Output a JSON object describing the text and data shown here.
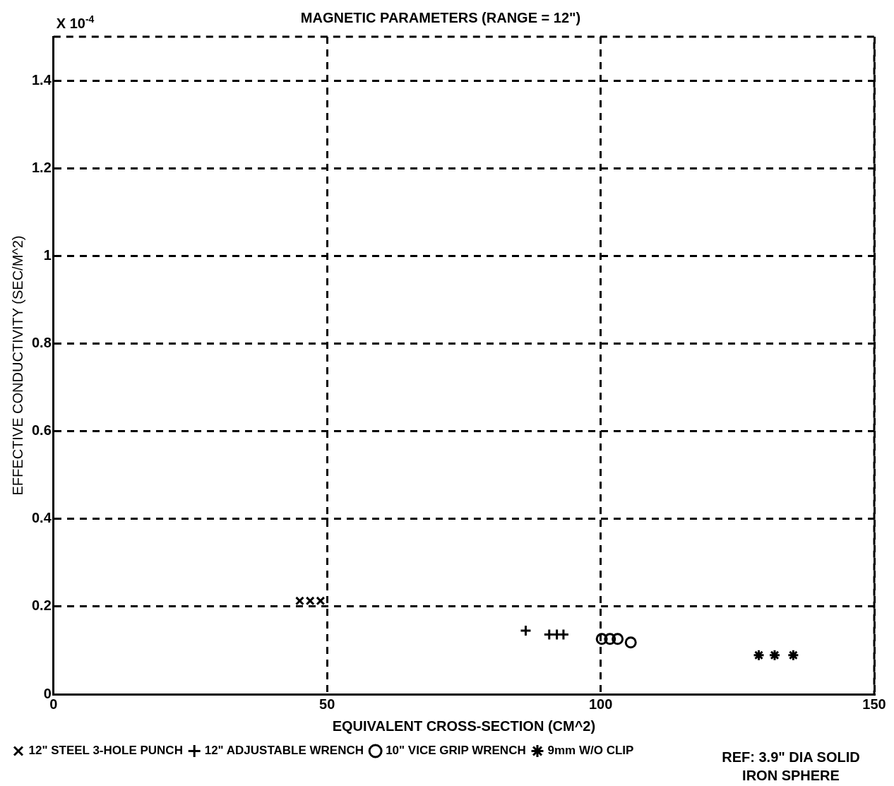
{
  "chart_data": {
    "type": "scatter",
    "title": "MAGNETIC PARAMETERS (RANGE = 12\")",
    "xlabel": "EQUIVALENT CROSS-SECTION (CM^2)",
    "ylabel": "EFFECTIVE CONDUCTIVITY (SEC/M^2)",
    "annotations": [
      "X 10$^{-4}$",
      "REF: 3.9\" DIA SOLID IRON SPHERE"
    ],
    "xlim": [
      0,
      150
    ],
    "xticks": [
      0,
      50,
      100,
      150
    ],
    "ylim": [
      0,
      1.5
    ],
    "yticks": [
      0,
      0.2,
      0.4,
      0.6,
      0.8,
      1,
      1.2,
      1.4
    ],
    "grid": true,
    "line_style": "dashed",
    "legend": "bottom",
    "series": [
      {
        "name": "12\" STEEL 3-HOLE PUNCH",
        "color": "#000000",
        "marker": "x",
        "x": [
          45.0,
          46.9,
          48.8
        ],
        "values": [
          0.213,
          0.213,
          0.213
        ]
      },
      {
        "name": "12\" ADJUSTABLE WRENCH",
        "color": "#000000",
        "marker": "cross",
        "x": [
          86.3,
          90.6,
          92.0,
          93.2
        ],
        "values": [
          0.145,
          0.136,
          0.136,
          0.136
        ]
      },
      {
        "name": "10\" VICE GRIP WRENCH",
        "color": "#000000",
        "marker": "circle",
        "x": [
          100.2,
          101.7,
          103.1,
          105.5
        ],
        "values": [
          0.126,
          0.126,
          0.126,
          0.118
        ]
      },
      {
        "name": "9mm W/O CLIP",
        "color": "#000000",
        "x": [
          128.9,
          131.8,
          135.2
        ],
        "values": [
          0.089,
          0.089,
          0.089
        ]
      }
    ]
  }
}
